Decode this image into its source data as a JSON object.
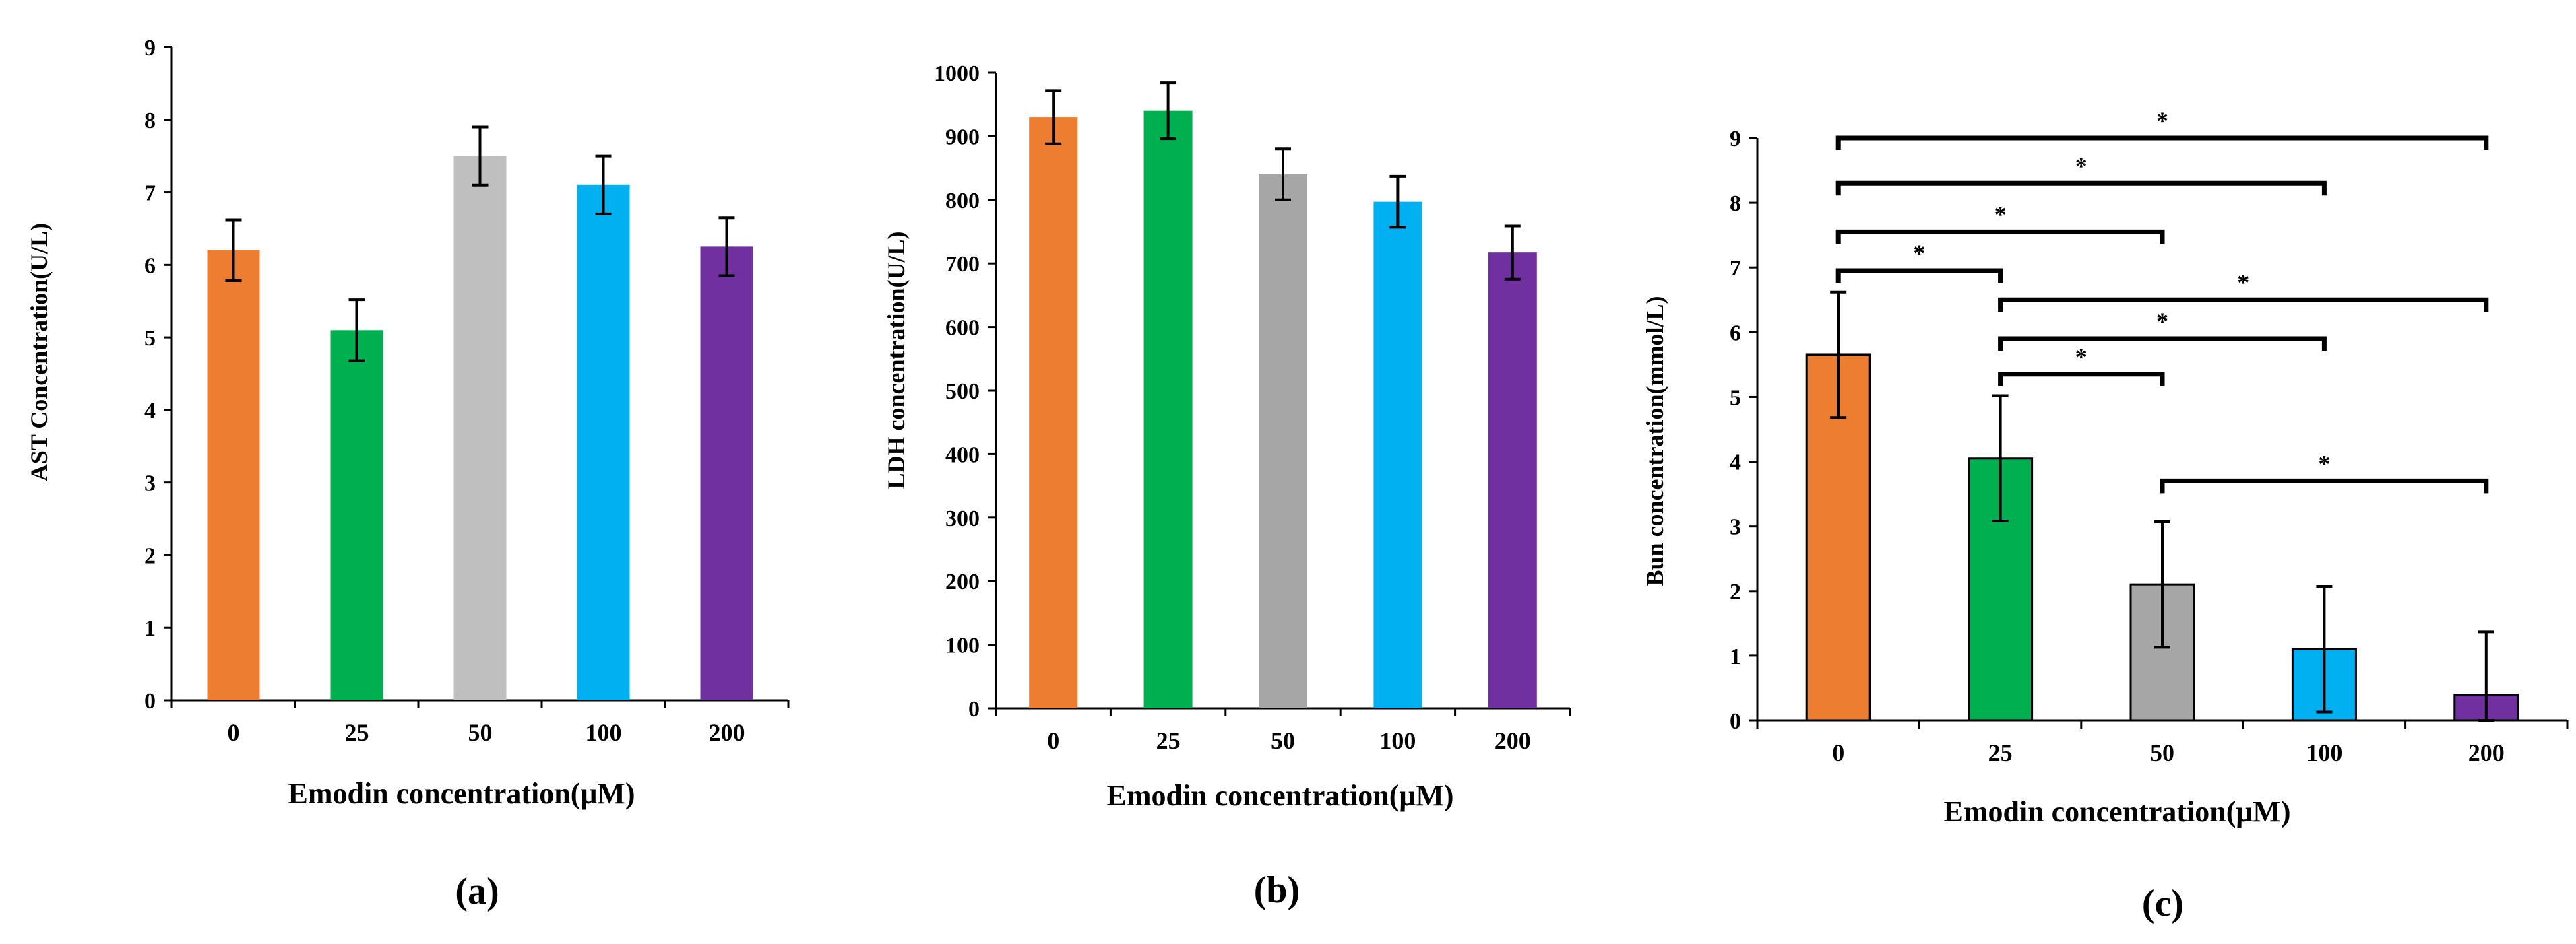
{
  "colors": {
    "orange": "#ED7D31",
    "green": "#00B050",
    "gray": "#BFBFBF",
    "gray_dark": "#A6A6A6",
    "blue": "#00B0F0",
    "purple": "#7030A0",
    "axis": "#000000"
  },
  "chart_data": [
    {
      "type": "bar",
      "panel_label": "(a)",
      "title": "",
      "xlabel": "Emodin concentration(μM)",
      "ylabel": "AST  Concentration(U/L)",
      "categories": [
        "0",
        "25",
        "50",
        "100",
        "200"
      ],
      "values": [
        6.2,
        5.1,
        7.5,
        7.1,
        6.25
      ],
      "errors": [
        0.42,
        0.42,
        0.4,
        0.4,
        0.4
      ],
      "ylim": [
        0,
        9
      ],
      "yticks": [
        "0",
        "1",
        "2",
        "3",
        "4",
        "5",
        "6",
        "7",
        "8",
        "9"
      ],
      "grid": false,
      "bar_colors": [
        "#ED7D31",
        "#00B050",
        "#BFBFBF",
        "#00B0F0",
        "#7030A0"
      ]
    },
    {
      "type": "bar",
      "panel_label": "(b)",
      "title": "",
      "xlabel": "Emodin concentration(μM)",
      "ylabel": "LDH concentration(U/L)",
      "categories": [
        "0",
        "25",
        "50",
        "100",
        "200"
      ],
      "values": [
        930,
        940,
        840,
        797,
        717
      ],
      "errors": [
        42,
        44,
        40,
        40,
        42
      ],
      "ylim": [
        0,
        1000
      ],
      "yticks": [
        "0",
        "100",
        "200",
        "300",
        "400",
        "500",
        "600",
        "700",
        "800",
        "900",
        "1000"
      ],
      "grid": false,
      "bar_colors": [
        "#ED7D31",
        "#00B050",
        "#A6A6A6",
        "#00B0F0",
        "#7030A0"
      ]
    },
    {
      "type": "bar",
      "panel_label": "(c)",
      "title": "",
      "xlabel": "Emodin concentration(μM)",
      "ylabel": "Bun concentration(mmol/L)",
      "categories": [
        "0",
        "25",
        "50",
        "100",
        "200"
      ],
      "values": [
        5.65,
        4.05,
        2.1,
        1.1,
        0.4
      ],
      "errors": [
        0.97,
        0.97,
        0.97,
        0.97,
        0.97
      ],
      "ylim": [
        0,
        9
      ],
      "yticks": [
        "0",
        "1",
        "2",
        "3",
        "4",
        "5",
        "6",
        "7",
        "8",
        "9"
      ],
      "grid": false,
      "bar_colors": [
        "#ED7D31",
        "#00B050",
        "#A6A6A6",
        "#00B0F0",
        "#7030A0"
      ],
      "significance": [
        {
          "from": 0,
          "to": 4,
          "y": 9.0,
          "label": "*"
        },
        {
          "from": 0,
          "to": 3,
          "y": 8.3,
          "label": "*"
        },
        {
          "from": 0,
          "to": 2,
          "y": 7.55,
          "label": "*"
        },
        {
          "from": 0,
          "to": 1,
          "y": 6.95,
          "label": "*"
        },
        {
          "from": 1,
          "to": 4,
          "y": 6.5,
          "label": "*"
        },
        {
          "from": 1,
          "to": 3,
          "y": 5.9,
          "label": "*"
        },
        {
          "from": 1,
          "to": 2,
          "y": 5.35,
          "label": "*"
        },
        {
          "from": 2,
          "to": 4,
          "y": 3.7,
          "label": "*"
        }
      ]
    }
  ]
}
